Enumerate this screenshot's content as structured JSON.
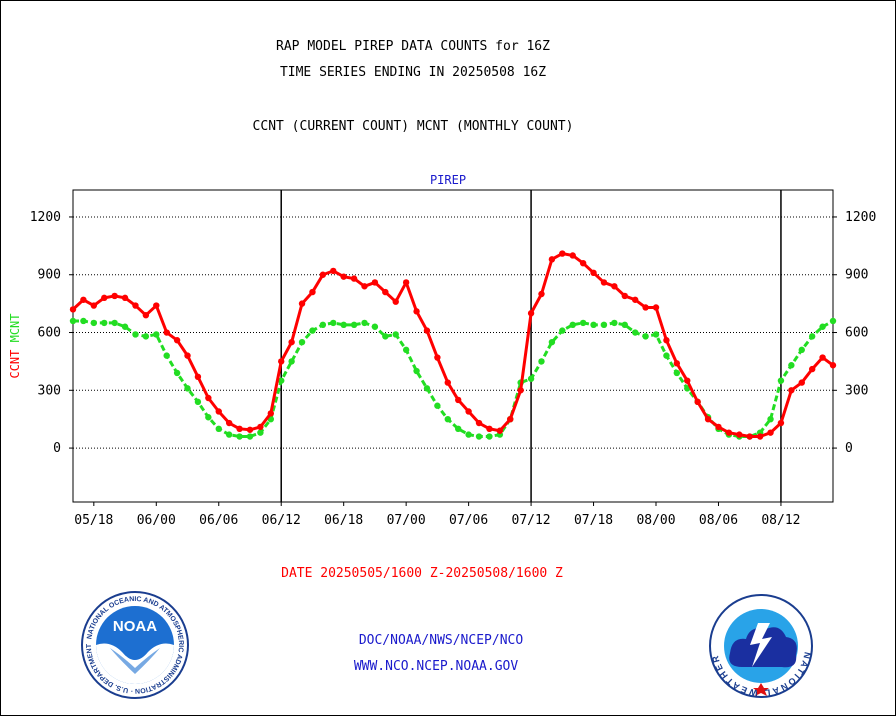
{
  "title_line1": "RAP MODEL PIREP DATA COUNTS for 16Z",
  "title_line2": "TIME SERIES ENDING IN 20250508 16Z",
  "subtitle": "CCNT (CURRENT COUNT) MCNT (MONTHLY COUNT)",
  "date_range": "DATE 20250505/1600 Z-20250508/1600 Z",
  "credit_line1": "DOC/NOAA/NWS/NCEP/NCO",
  "credit_line2": "WWW.NCO.NCEP.NOAA.GOV",
  "noaa_logo": {
    "text": "NOAA",
    "ring_text": "NATIONAL OCEANIC AND ATMOSPHERIC ADMINISTRATION · U.S. DEPARTMENT OF COMMERCE"
  },
  "nws_logo": {
    "ring_text": "NATIONAL WEATHER SERVICE"
  },
  "colors": {
    "ccnt": "#ff0000",
    "mcnt": "#22dd22",
    "label_blue": "#1a1acc",
    "date_red": "#ff0000",
    "credit_blue": "#1a1acc"
  },
  "chart_data": {
    "type": "line",
    "title": "PIREP",
    "ylabel_left": [
      "CCNT",
      "MCNT"
    ],
    "yticks": [
      0,
      300,
      600,
      900,
      1200
    ],
    "ylim": [
      -280,
      1340
    ],
    "xlim": [
      0,
      73
    ],
    "xtick_labels": [
      {
        "x": 2,
        "label": "05/18"
      },
      {
        "x": 8,
        "label": "06/00"
      },
      {
        "x": 14,
        "label": "06/06"
      },
      {
        "x": 20,
        "label": "06/12"
      },
      {
        "x": 26,
        "label": "06/18"
      },
      {
        "x": 32,
        "label": "07/00"
      },
      {
        "x": 38,
        "label": "07/06"
      },
      {
        "x": 44,
        "label": "07/12"
      },
      {
        "x": 50,
        "label": "07/18"
      },
      {
        "x": 56,
        "label": "08/00"
      },
      {
        "x": 62,
        "label": "08/06"
      },
      {
        "x": 68,
        "label": "08/12"
      }
    ],
    "day_boundaries": [
      20,
      44,
      68
    ],
    "grid": "horizontal-dotted",
    "series": [
      {
        "name": "CCNT",
        "color": "#ff0000",
        "values": [
          720,
          770,
          740,
          780,
          790,
          780,
          740,
          690,
          740,
          600,
          560,
          480,
          370,
          260,
          190,
          130,
          100,
          95,
          110,
          180,
          450,
          550,
          750,
          810,
          900,
          920,
          890,
          880,
          840,
          860,
          810,
          760,
          860,
          710,
          610,
          470,
          340,
          250,
          190,
          130,
          100,
          90,
          150,
          300,
          700,
          800,
          980,
          1010,
          1000,
          960,
          910,
          860,
          840,
          790,
          770,
          730,
          730,
          560,
          440,
          350,
          240,
          150,
          110,
          80,
          70,
          60,
          60,
          80,
          130,
          300,
          340,
          410,
          470,
          430
        ]
      },
      {
        "name": "MCNT",
        "color": "#22dd22",
        "values": [
          660,
          660,
          650,
          650,
          650,
          630,
          590,
          580,
          590,
          480,
          390,
          310,
          240,
          160,
          100,
          70,
          60,
          60,
          80,
          150,
          350,
          450,
          550,
          610,
          640,
          650,
          640,
          640,
          650,
          630,
          580,
          590,
          510,
          400,
          310,
          220,
          150,
          100,
          70,
          60,
          60,
          70,
          150,
          340,
          360,
          450,
          550,
          610,
          640,
          650,
          640,
          640,
          650,
          640,
          600,
          580,
          590,
          480,
          390,
          310,
          240,
          160,
          100,
          70,
          60,
          60,
          80,
          150,
          350,
          430,
          510,
          580,
          630,
          660
        ]
      }
    ]
  }
}
